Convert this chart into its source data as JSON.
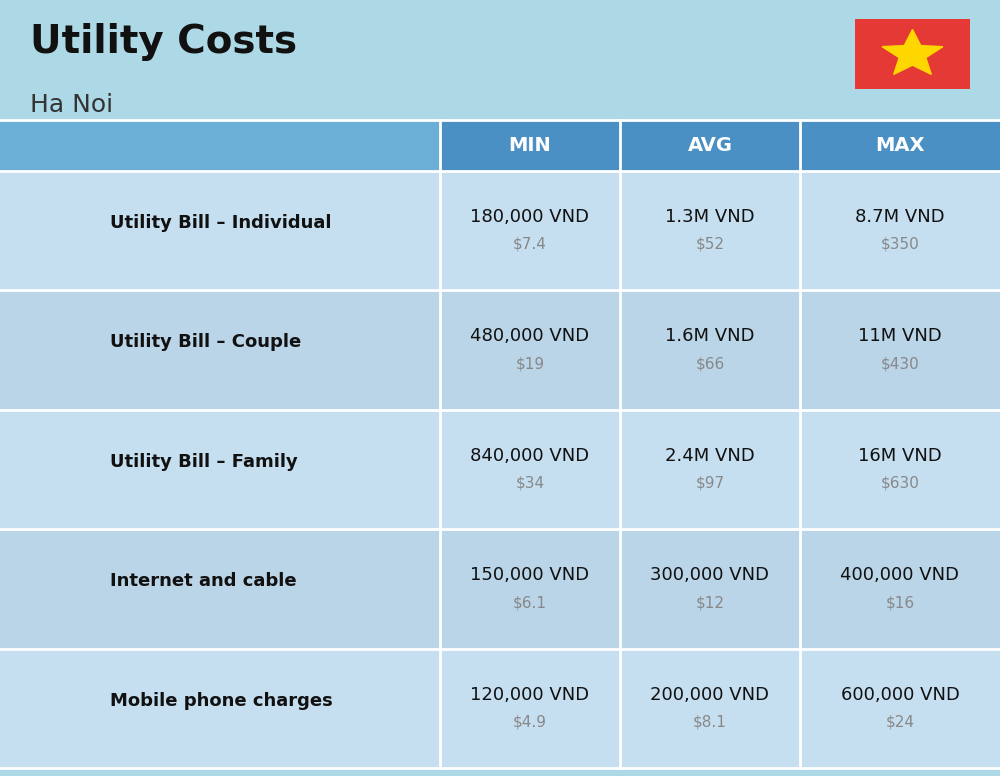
{
  "title": "Utility Costs",
  "subtitle": "Ha Noi",
  "bg_color": "#ADD8E6",
  "header_bg": "#4A90C4",
  "header_text_color": "#FFFFFF",
  "row_bg_light": "#C5DFF0",
  "row_bg_dark": "#BAD4E8",
  "separator_color": "#FFFFFF",
  "col_headers": [
    "MIN",
    "AVG",
    "MAX"
  ],
  "rows": [
    {
      "label": "Utility Bill – Individual",
      "min_vnd": "180,000 VND",
      "min_usd": "$7.4",
      "avg_vnd": "1.3M VND",
      "avg_usd": "$52",
      "max_vnd": "8.7M VND",
      "max_usd": "$350"
    },
    {
      "label": "Utility Bill – Couple",
      "min_vnd": "480,000 VND",
      "min_usd": "$19",
      "avg_vnd": "1.6M VND",
      "avg_usd": "$66",
      "max_vnd": "11M VND",
      "max_usd": "$430"
    },
    {
      "label": "Utility Bill – Family",
      "min_vnd": "840,000 VND",
      "min_usd": "$34",
      "avg_vnd": "2.4M VND",
      "avg_usd": "$97",
      "max_vnd": "16M VND",
      "max_usd": "$630"
    },
    {
      "label": "Internet and cable",
      "min_vnd": "150,000 VND",
      "min_usd": "$6.1",
      "avg_vnd": "300,000 VND",
      "avg_usd": "$12",
      "max_vnd": "400,000 VND",
      "max_usd": "$16"
    },
    {
      "label": "Mobile phone charges",
      "min_vnd": "120,000 VND",
      "min_usd": "$4.9",
      "avg_vnd": "200,000 VND",
      "avg_usd": "$8.1",
      "max_vnd": "600,000 VND",
      "max_usd": "$24"
    }
  ],
  "title_fontsize": 28,
  "subtitle_fontsize": 18,
  "header_fontsize": 14,
  "label_fontsize": 13,
  "value_fontsize": 13,
  "usd_fontsize": 11,
  "flag_red": "#E53935",
  "flag_yellow": "#FFD700"
}
